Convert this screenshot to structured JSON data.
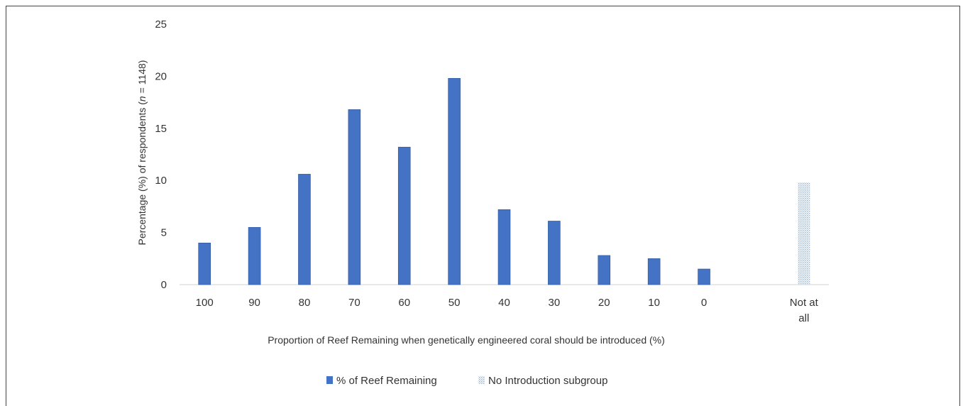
{
  "chart_data": {
    "type": "bar",
    "title": "",
    "xlabel": "Proportion of Reef Remaining when genetically engineered coral should be introduced (%)",
    "ylabel_main": "Percentage (%) of respondents",
    "ylabel_paren_open": "(",
    "ylabel_n": "n",
    "ylabel_rest": " = 1148)",
    "ylim": [
      0,
      25
    ],
    "yticks": [
      0,
      5,
      10,
      15,
      20,
      25
    ],
    "grid": false,
    "legend_position": "bottom",
    "categories": [
      "100",
      "90",
      "80",
      "70",
      "60",
      "50",
      "40",
      "30",
      "20",
      "10",
      "0",
      "",
      "Not at all"
    ],
    "category_lines": [
      [
        "100"
      ],
      [
        "90"
      ],
      [
        "80"
      ],
      [
        "70"
      ],
      [
        "60"
      ],
      [
        "50"
      ],
      [
        "40"
      ],
      [
        "30"
      ],
      [
        "20"
      ],
      [
        "10"
      ],
      [
        "0"
      ],
      [
        ""
      ],
      [
        "Not at",
        "all"
      ]
    ],
    "series": [
      {
        "name": "% of Reef Remaining",
        "color": "#4472C4",
        "pattern": "solid",
        "values": [
          4.0,
          5.5,
          10.6,
          16.8,
          13.2,
          19.8,
          7.2,
          6.1,
          2.8,
          2.5,
          1.5,
          null,
          null
        ]
      },
      {
        "name": "No Introduction subgroup",
        "color": "#BDD7EE",
        "pattern": "dotted",
        "values": [
          null,
          null,
          null,
          null,
          null,
          null,
          null,
          null,
          null,
          null,
          null,
          null,
          9.8
        ]
      }
    ]
  }
}
